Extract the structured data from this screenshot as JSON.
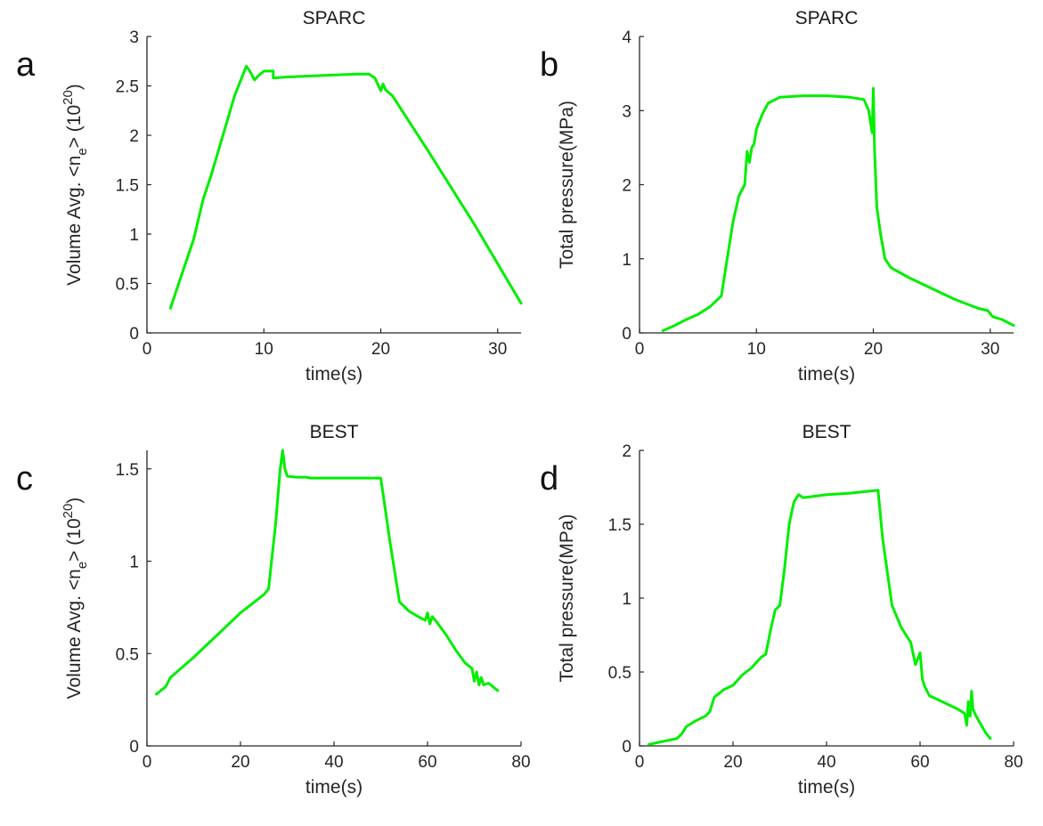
{
  "colors": {
    "series": "#00ee00",
    "axis": "#262626"
  },
  "chart_data": [
    {
      "type": "line",
      "panel_letter": "a",
      "title": "SPARC",
      "xlabel": "time(s)",
      "ylabel": {
        "main": "Volume Avg. <n",
        "sub": "e",
        "mid": "> (10",
        "sup": "20",
        "end": ")"
      },
      "xlim": [
        0,
        32
      ],
      "ylim": [
        0,
        3
      ],
      "xticks": [
        0,
        10,
        20,
        30
      ],
      "yticks": [
        0,
        0.5,
        1,
        1.5,
        2,
        2.5,
        3
      ],
      "xtick_labels": [
        "0",
        "10",
        "20",
        "30"
      ],
      "ytick_labels": [
        "0",
        "0.5",
        "1",
        "1.5",
        "2",
        "2.5",
        "3"
      ],
      "series": [
        {
          "x": [
            2,
            3,
            4,
            4.8,
            5.5,
            6.5,
            7.5,
            8.5,
            8.8,
            9.2,
            9.5,
            10.0,
            10.5,
            10.8,
            10.8,
            12,
            14,
            16,
            18,
            19,
            19.5,
            20,
            20.2,
            20.4,
            21,
            24,
            28,
            32
          ],
          "y": [
            0.25,
            0.6,
            0.95,
            1.35,
            1.6,
            2.0,
            2.4,
            2.7,
            2.65,
            2.56,
            2.6,
            2.65,
            2.65,
            2.65,
            2.58,
            2.59,
            2.6,
            2.61,
            2.62,
            2.62,
            2.58,
            2.45,
            2.52,
            2.46,
            2.4,
            1.85,
            1.1,
            0.3
          ]
        }
      ]
    },
    {
      "type": "line",
      "panel_letter": "b",
      "title": "SPARC",
      "xlabel": "time(s)",
      "ylabel": {
        "main": "Total pressure(MPa)",
        "sub": "",
        "mid": "",
        "sup": "",
        "end": ""
      },
      "xlim": [
        0,
        32
      ],
      "ylim": [
        0,
        4
      ],
      "xticks": [
        0,
        10,
        20,
        30
      ],
      "yticks": [
        0,
        1,
        2,
        3,
        4
      ],
      "xtick_labels": [
        "0",
        "10",
        "20",
        "30"
      ],
      "ytick_labels": [
        "0",
        "1",
        "2",
        "3",
        "4"
      ],
      "series": [
        {
          "x": [
            2,
            3,
            4,
            5,
            6,
            7,
            7.5,
            8,
            8.5,
            9,
            9.2,
            9.4,
            9.6,
            9.8,
            10,
            10.5,
            11,
            12,
            14,
            16,
            18,
            19.2,
            19.6,
            19.8,
            19.9,
            20.0,
            20.1,
            20.3,
            20.6,
            21.0,
            21.5,
            23,
            25,
            27,
            29,
            29.8,
            30.2,
            31,
            32
          ],
          "y": [
            0.03,
            0.1,
            0.18,
            0.25,
            0.35,
            0.5,
            1.0,
            1.5,
            1.85,
            2.0,
            2.45,
            2.3,
            2.5,
            2.55,
            2.75,
            2.95,
            3.1,
            3.18,
            3.2,
            3.2,
            3.18,
            3.15,
            3.0,
            2.8,
            2.7,
            3.3,
            2.5,
            1.7,
            1.35,
            1.0,
            0.88,
            0.75,
            0.6,
            0.45,
            0.33,
            0.3,
            0.22,
            0.18,
            0.1
          ]
        }
      ]
    },
    {
      "type": "line",
      "panel_letter": "c",
      "title": "BEST",
      "xlabel": "time(s)",
      "ylabel": {
        "main": "Volume Avg. <n",
        "sub": "e",
        "mid": "> (10",
        "sup": "20",
        "end": ")"
      },
      "xlim": [
        0,
        80
      ],
      "ylim": [
        0,
        1.6
      ],
      "xticks": [
        0,
        20,
        40,
        60,
        80
      ],
      "yticks": [
        0,
        0.5,
        1,
        1.5
      ],
      "xtick_labels": [
        "0",
        "20",
        "40",
        "60",
        "80"
      ],
      "ytick_labels": [
        "0",
        "0.5",
        "1",
        "1.5"
      ],
      "series": [
        {
          "x": [
            2,
            4,
            5,
            10,
            15,
            20,
            25,
            26,
            27.5,
            28.5,
            29,
            29.5,
            30,
            32,
            34,
            35,
            40,
            45,
            50,
            52,
            54,
            56,
            58,
            59.5,
            60,
            60.5,
            61,
            62,
            64,
            66,
            68,
            69.5,
            70,
            70.5,
            71,
            71.5,
            72,
            73,
            75
          ],
          "y": [
            0.28,
            0.32,
            0.37,
            0.48,
            0.6,
            0.72,
            0.82,
            0.85,
            1.2,
            1.5,
            1.6,
            1.5,
            1.46,
            1.455,
            1.455,
            1.45,
            1.45,
            1.45,
            1.45,
            1.1,
            0.78,
            0.73,
            0.7,
            0.68,
            0.72,
            0.66,
            0.7,
            0.67,
            0.6,
            0.52,
            0.45,
            0.42,
            0.35,
            0.4,
            0.33,
            0.37,
            0.33,
            0.34,
            0.3
          ]
        }
      ]
    },
    {
      "type": "line",
      "panel_letter": "d",
      "title": "BEST",
      "xlabel": "time(s)",
      "ylabel": {
        "main": "Total pressure(MPa)",
        "sub": "",
        "mid": "",
        "sup": "",
        "end": ""
      },
      "xlim": [
        0,
        80
      ],
      "ylim": [
        0,
        2
      ],
      "xticks": [
        0,
        20,
        40,
        60,
        80
      ],
      "yticks": [
        0,
        0.5,
        1,
        1.5,
        2
      ],
      "xtick_labels": [
        "0",
        "20",
        "40",
        "60",
        "80"
      ],
      "ytick_labels": [
        "0",
        "0.5",
        "1",
        "1.5",
        "2"
      ],
      "series": [
        {
          "x": [
            2,
            5,
            8,
            9,
            10,
            12,
            14,
            15,
            16,
            18,
            20,
            22,
            24,
            26,
            27,
            28,
            29,
            30,
            31,
            32,
            33,
            34,
            35,
            40,
            45,
            51,
            52,
            54,
            56,
            58,
            59,
            60,
            60.5,
            61,
            62,
            64,
            66,
            68,
            69.5,
            70,
            70.3,
            70.7,
            71,
            71.3,
            72,
            74,
            75
          ],
          "y": [
            0.01,
            0.03,
            0.05,
            0.08,
            0.13,
            0.17,
            0.2,
            0.23,
            0.33,
            0.38,
            0.41,
            0.48,
            0.53,
            0.6,
            0.62,
            0.78,
            0.92,
            0.95,
            1.2,
            1.5,
            1.65,
            1.7,
            1.68,
            1.7,
            1.71,
            1.73,
            1.4,
            0.95,
            0.8,
            0.7,
            0.55,
            0.63,
            0.45,
            0.4,
            0.34,
            0.31,
            0.28,
            0.25,
            0.22,
            0.14,
            0.3,
            0.2,
            0.37,
            0.25,
            0.2,
            0.09,
            0.05
          ]
        }
      ]
    }
  ]
}
